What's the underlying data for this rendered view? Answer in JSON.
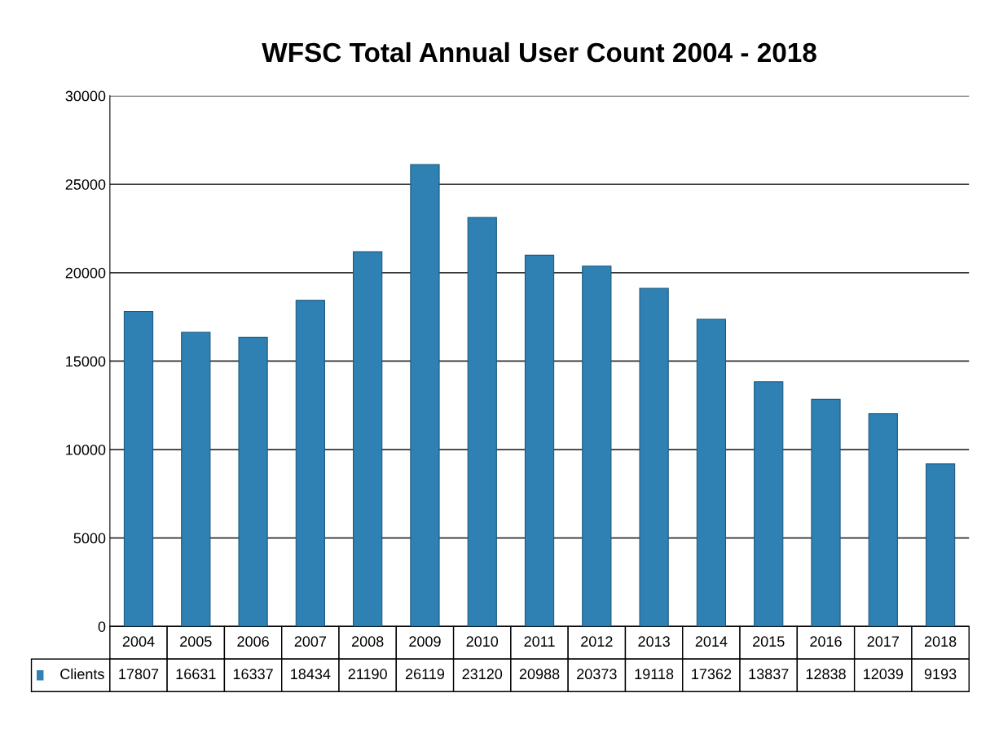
{
  "chart_data": {
    "type": "bar",
    "title": "WFSC Total Annual User Count 2004 - 2018",
    "categories": [
      "2004",
      "2005",
      "2006",
      "2007",
      "2008",
      "2009",
      "2010",
      "2011",
      "2012",
      "2013",
      "2014",
      "2015",
      "2016",
      "2017",
      "2018"
    ],
    "series": [
      {
        "name": "Clients",
        "color": "#2f80b3",
        "values": [
          17807,
          16631,
          16337,
          18434,
          21190,
          26119,
          23120,
          20988,
          20373,
          19118,
          17362,
          13837,
          12838,
          12039,
          9193
        ]
      }
    ],
    "ylim": [
      0,
      30000
    ],
    "yticks": [
      0,
      5000,
      10000,
      15000,
      20000,
      25000,
      30000
    ],
    "grid": "y",
    "data_labels": true
  }
}
